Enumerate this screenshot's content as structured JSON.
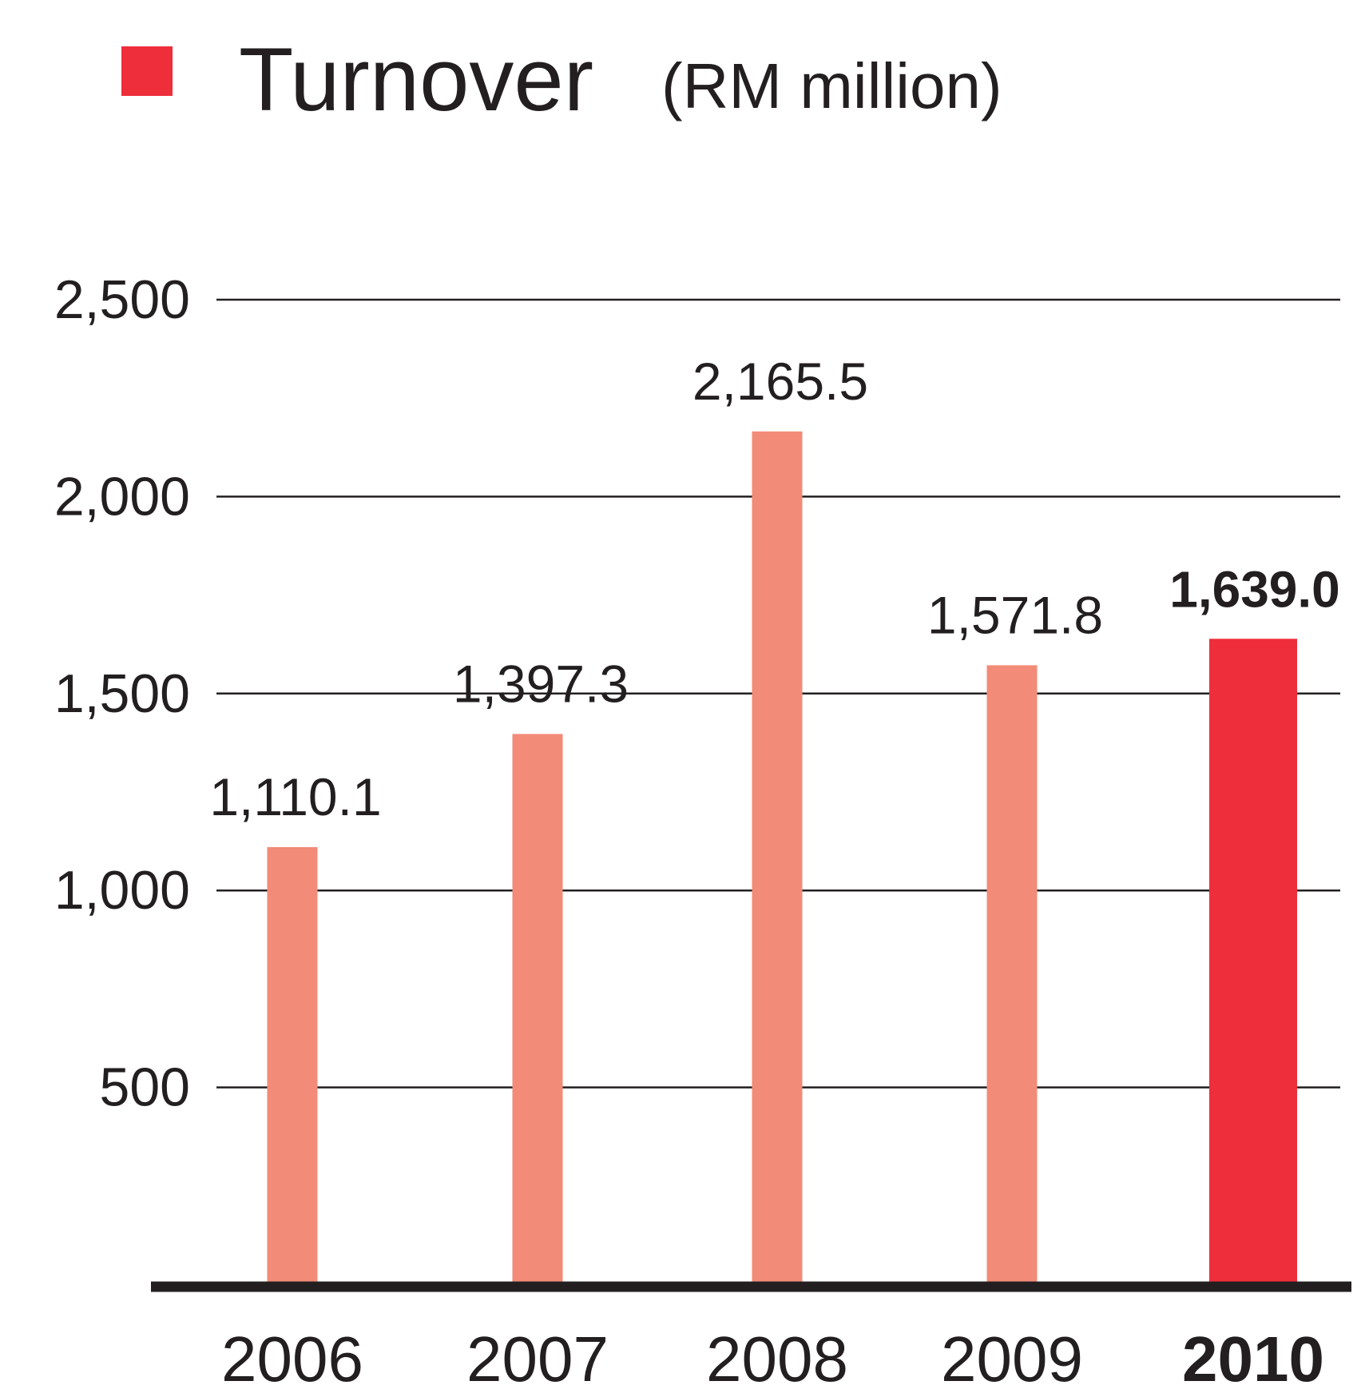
{
  "chart_data": {
    "type": "bar",
    "title": "Turnover",
    "subtitle": "(RM million)",
    "categories": [
      "2006",
      "2007",
      "2008",
      "2009",
      "2010"
    ],
    "values": [
      1110.1,
      1397.3,
      2165.5,
      1571.8,
      1639.0
    ],
    "value_labels": [
      "1,110.1",
      "1,397.3",
      "2,165.5",
      "1,571.8",
      "1,639.0"
    ],
    "colors": [
      "#f28b78",
      "#f28b78",
      "#f28b78",
      "#f28b78",
      "#ee2e3a"
    ],
    "legend_color": "#ee2e3a",
    "ylim": [
      0,
      2500
    ],
    "yticks": [
      500,
      {
        "value": 1000,
        "label": "1,000"
      },
      {
        "value": 1500,
        "label": "1,500"
      },
      {
        "value": 2000,
        "label": "2,000"
      },
      {
        "value": 2500,
        "label": "2,500"
      }
    ],
    "grid": true
  }
}
